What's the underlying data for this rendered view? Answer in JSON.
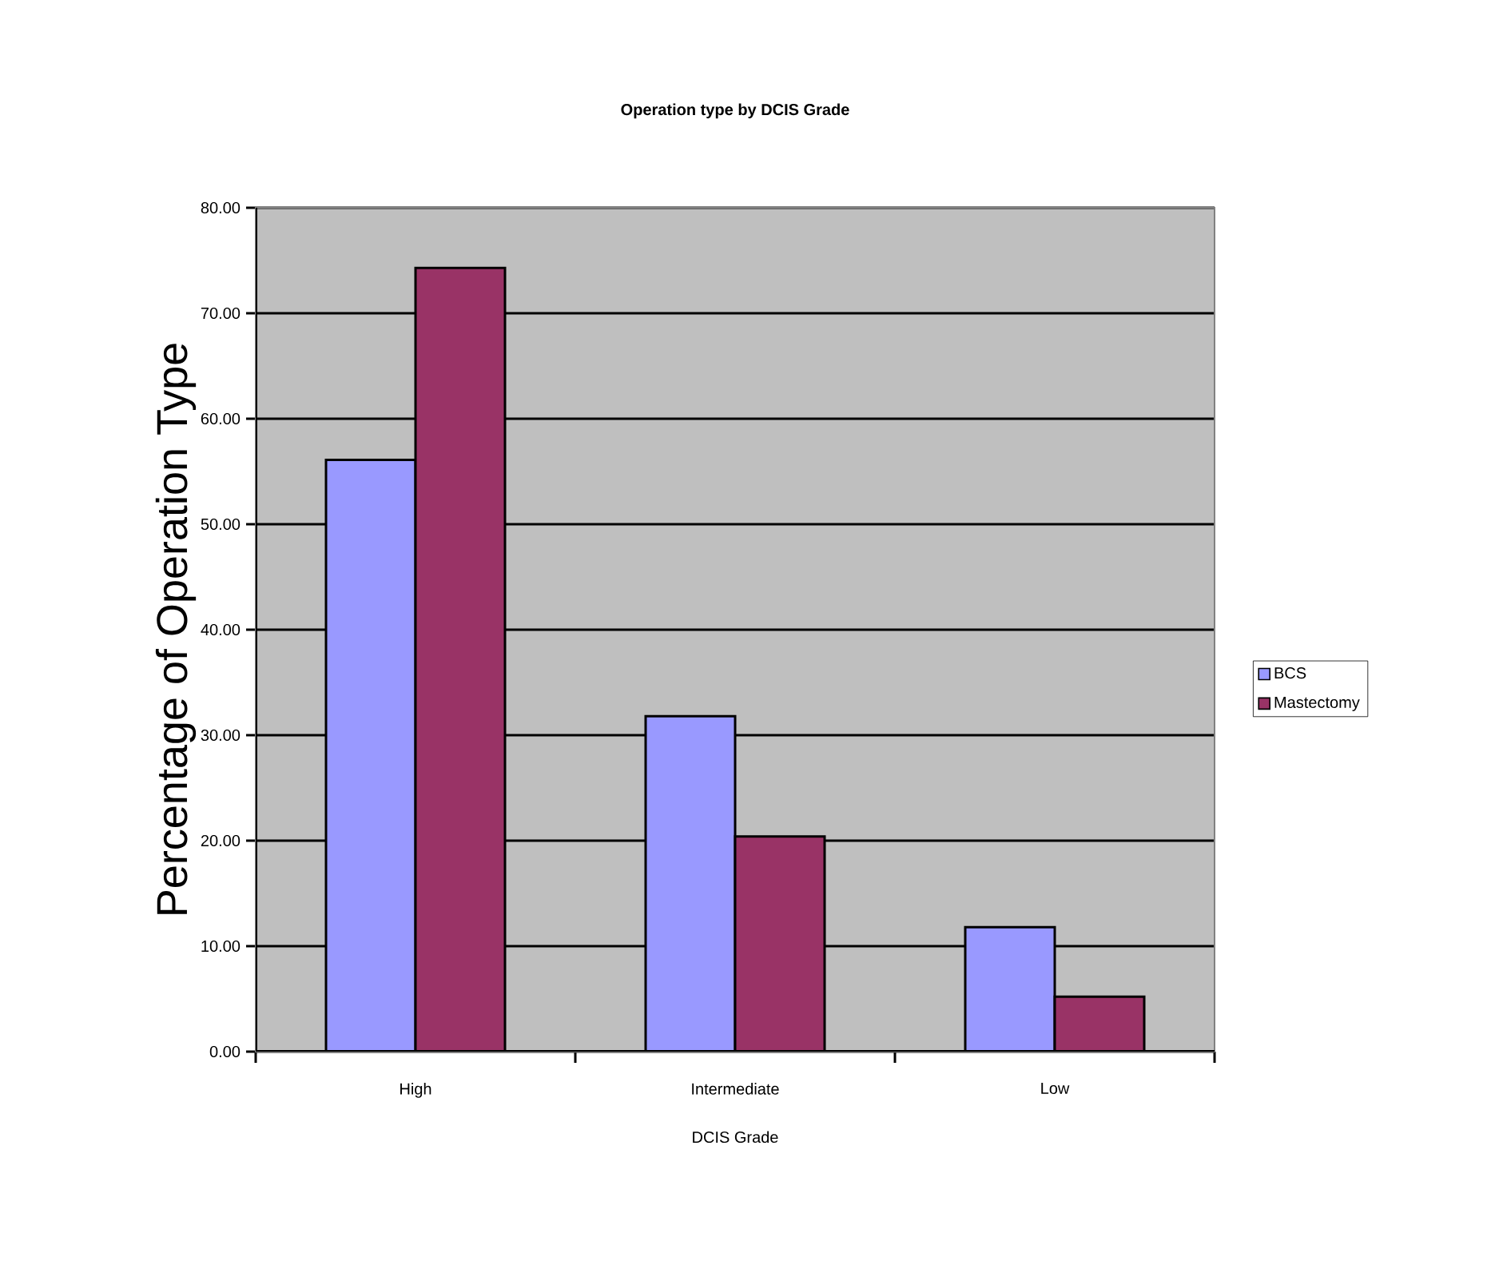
{
  "chart_data": {
    "type": "bar",
    "title": "Operation type by DCIS Grade",
    "xlabel": "DCIS Grade",
    "ylabel": "Percentage of Operation Type",
    "categories": [
      "High",
      "Intermediate",
      "Low"
    ],
    "series": [
      {
        "name": "BCS",
        "color": "#9999ff",
        "values": [
          56.1,
          31.8,
          11.8
        ]
      },
      {
        "name": "Mastectomy",
        "color": "#993366",
        "values": [
          74.3,
          20.4,
          5.2
        ]
      }
    ],
    "ylim": [
      0,
      80
    ],
    "yticks": [
      {
        "value": 0,
        "label": "0.00"
      },
      {
        "value": 10,
        "label": "10.00"
      },
      {
        "value": 20,
        "label": "20.00"
      },
      {
        "value": 30,
        "label": "30.00"
      },
      {
        "value": 40,
        "label": "40.00"
      },
      {
        "value": 50,
        "label": "50.00"
      },
      {
        "value": 60,
        "label": "60.00"
      },
      {
        "value": 70,
        "label": "70.00"
      },
      {
        "value": 80,
        "label": "80.00"
      }
    ],
    "grid": "y",
    "legend": "right"
  }
}
